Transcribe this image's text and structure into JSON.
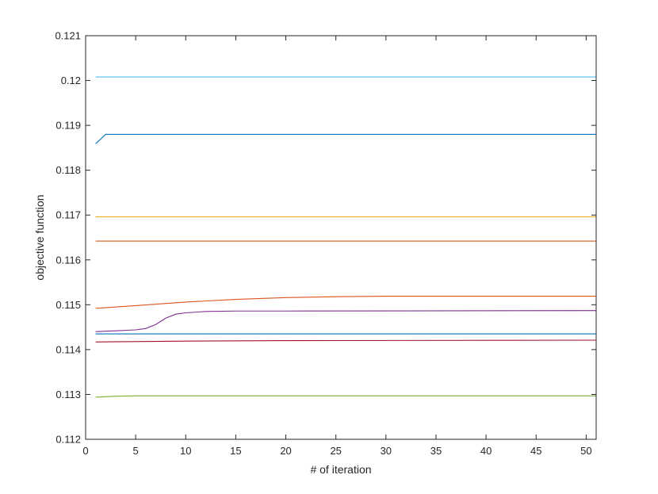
{
  "chart_data": {
    "type": "line",
    "xlabel": "# of iteration",
    "ylabel": "objective function",
    "xlim": [
      0,
      51
    ],
    "ylim": [
      0.112,
      0.121
    ],
    "xticks": [
      0,
      5,
      10,
      15,
      20,
      25,
      30,
      35,
      40,
      45,
      50
    ],
    "yticks": [
      0.112,
      0.113,
      0.114,
      0.115,
      0.116,
      0.117,
      0.118,
      0.119,
      0.12,
      0.121
    ],
    "xtick_labels": [
      "0",
      "5",
      "10",
      "15",
      "20",
      "25",
      "30",
      "35",
      "40",
      "45",
      "50"
    ],
    "ytick_labels": [
      "0.112",
      "0.113",
      "0.114",
      "0.115",
      "0.116",
      "0.117",
      "0.118",
      "0.119",
      "0.12",
      "0.121"
    ],
    "grid": false,
    "series": [
      {
        "color": "#4DBEEE",
        "x": [
          1,
          51
        ],
        "y": [
          0.12008,
          0.12008
        ]
      },
      {
        "color": "#0072BD",
        "x": [
          1,
          2,
          51
        ],
        "y": [
          0.11859,
          0.1188,
          0.1188
        ]
      },
      {
        "color": "#EDB120",
        "x": [
          1,
          51
        ],
        "y": [
          0.11696,
          0.11696
        ]
      },
      {
        "color": "#D95319",
        "x": [
          1,
          51
        ],
        "y": [
          0.11642,
          0.11642
        ]
      },
      {
        "color": "#D95319",
        "x": [
          1,
          5,
          10,
          15,
          20,
          25,
          30,
          35,
          51
        ],
        "y": [
          0.11492,
          0.11498,
          0.11506,
          0.11512,
          0.11516,
          0.11518,
          0.11519,
          0.11519,
          0.11519
        ]
      },
      {
        "color": "#7E2F8E",
        "x": [
          1,
          3,
          5,
          6,
          7,
          8,
          9,
          10,
          12,
          15,
          20,
          51
        ],
        "y": [
          0.1144,
          0.11442,
          0.11444,
          0.11447,
          0.11456,
          0.1147,
          0.11479,
          0.11482,
          0.11485,
          0.11486,
          0.11486,
          0.11487
        ]
      },
      {
        "color": "#0072BD",
        "x": [
          1,
          51
        ],
        "y": [
          0.11435,
          0.11435
        ]
      },
      {
        "color": "#A2142F",
        "x": [
          1,
          10,
          20,
          51
        ],
        "y": [
          0.11417,
          0.11419,
          0.1142,
          0.11421
        ]
      },
      {
        "color": "#77AC30",
        "x": [
          1,
          3,
          5,
          10,
          51
        ],
        "y": [
          0.11294,
          0.11296,
          0.11297,
          0.11297,
          0.11297
        ]
      }
    ]
  }
}
